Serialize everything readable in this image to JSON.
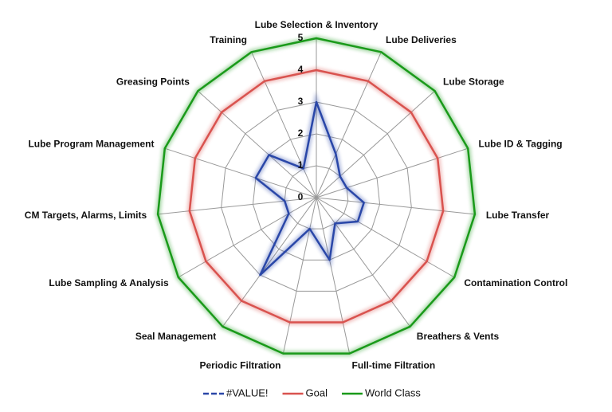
{
  "chart_data": {
    "type": "radar",
    "categories": [
      "Lube Selection & Inventory",
      "Lube Deliveries",
      "Lube Storage",
      "Lube ID & Tagging",
      "Lube Transfer",
      "Contamination Control",
      "Breathers & Vents",
      "Full-time Filtration",
      "Periodic Filtration",
      "Seal Management",
      "Lube Sampling & Analysis",
      "CM Targets, Alarms, Limits",
      "Lube Program Management",
      "Greasing Points",
      "Training"
    ],
    "series": [
      {
        "name": "#VALUE!",
        "color": "#2a47a8",
        "values": [
          3,
          1.5,
          1,
          1,
          1.5,
          1.5,
          1,
          2,
          1,
          3,
          1,
          1,
          2,
          2,
          1
        ]
      },
      {
        "name": "Goal",
        "color": "#d9534f",
        "values": [
          4,
          4,
          4,
          4,
          4,
          4,
          4,
          4,
          4,
          4,
          4,
          4,
          4,
          4,
          4
        ]
      },
      {
        "name": "World Class",
        "color": "#1a9a1a",
        "values": [
          5,
          5,
          5,
          5,
          5,
          5,
          5,
          5,
          5,
          5,
          5,
          5,
          5,
          5,
          5
        ]
      }
    ],
    "ylim": [
      0,
      5
    ],
    "yticks": [
      0,
      1,
      2,
      3,
      4,
      5
    ],
    "grid": true
  }
}
